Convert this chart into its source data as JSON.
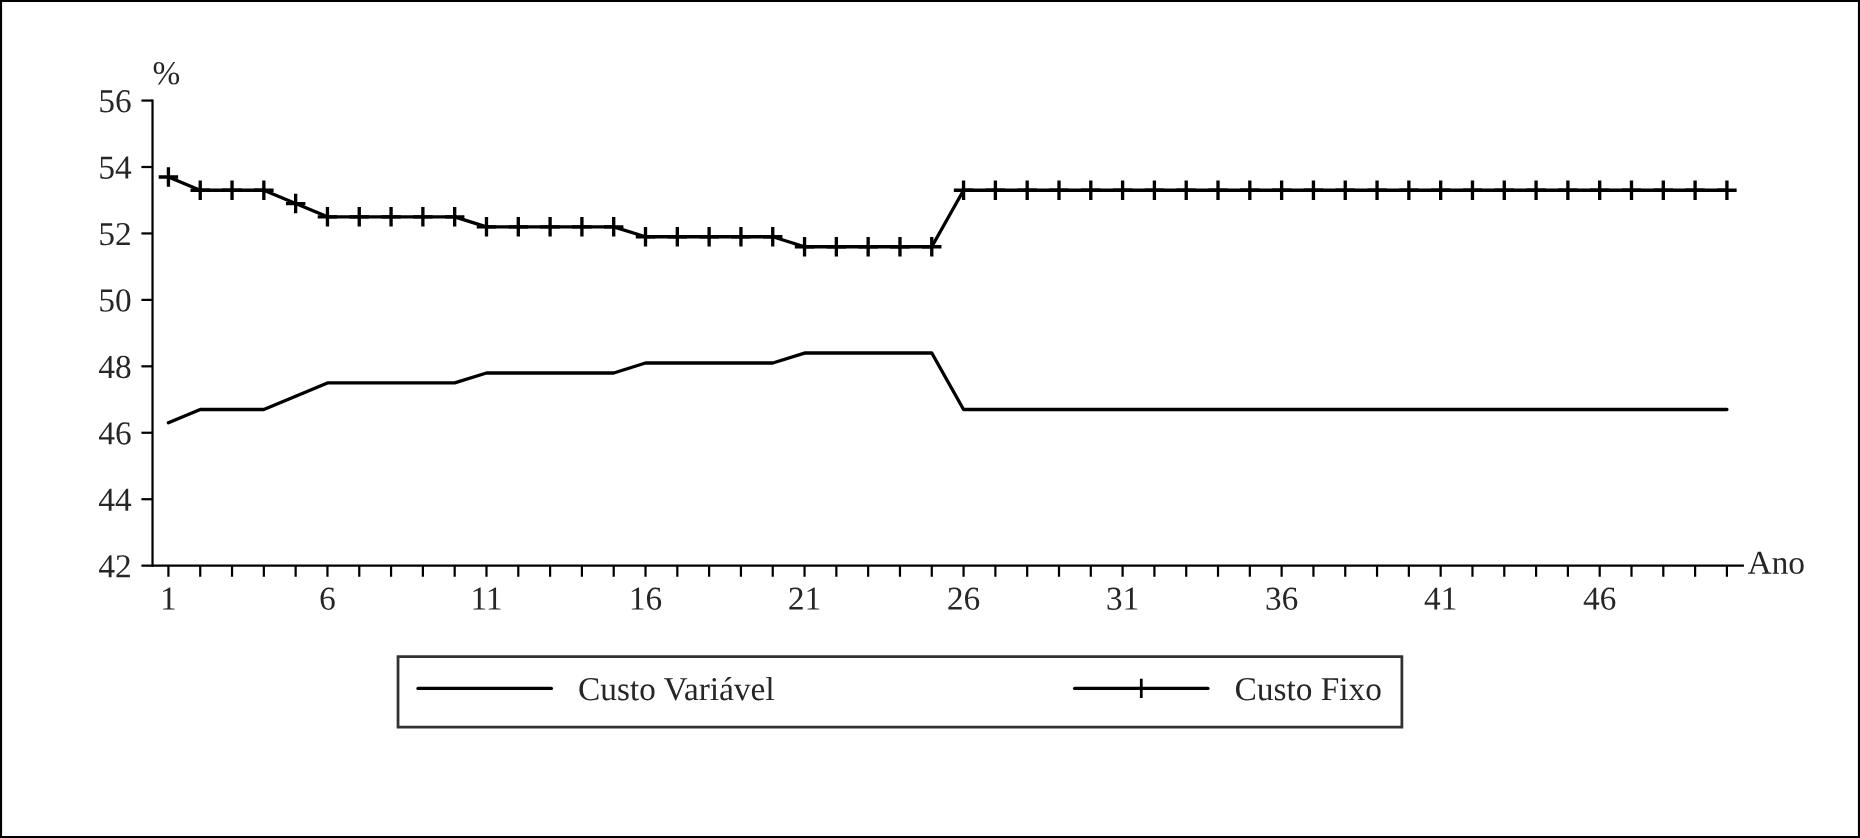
{
  "chart_data": {
    "type": "line",
    "ylabel": "%",
    "xlabel": "Ano",
    "categories": [
      "1",
      null,
      null,
      null,
      null,
      "6",
      null,
      null,
      null,
      null,
      "11",
      null,
      null,
      null,
      null,
      "16",
      null,
      null,
      null,
      null,
      "21",
      null,
      null,
      null,
      null,
      "26",
      null,
      null,
      null,
      null,
      "31",
      null,
      null,
      null,
      null,
      "36",
      null,
      null,
      null,
      null,
      "41",
      null,
      null,
      null,
      null,
      "46",
      null,
      null,
      null,
      null
    ],
    "series": [
      {
        "name": "Custo Variável",
        "color": "#000000",
        "marker": "none",
        "values": [
          46.3,
          46.7,
          46.7,
          46.7,
          47.1,
          47.5,
          47.5,
          47.5,
          47.5,
          47.5,
          47.8,
          47.8,
          47.8,
          47.8,
          47.8,
          48.1,
          48.1,
          48.1,
          48.1,
          48.1,
          48.4,
          48.4,
          48.4,
          48.4,
          48.4,
          46.7,
          46.7,
          46.7,
          46.7,
          46.7,
          46.7,
          46.7,
          46.7,
          46.7,
          46.7,
          46.7,
          46.7,
          46.7,
          46.7,
          46.7,
          46.7,
          46.7,
          46.7,
          46.7,
          46.7,
          46.7,
          46.7,
          46.7,
          46.7,
          46.7
        ]
      },
      {
        "name": "Custo Fixo",
        "color": "#000000",
        "marker": "cross",
        "values": [
          53.7,
          53.3,
          53.3,
          53.3,
          52.9,
          52.5,
          52.5,
          52.5,
          52.5,
          52.5,
          52.2,
          52.2,
          52.2,
          52.2,
          52.2,
          51.9,
          51.9,
          51.9,
          51.9,
          51.9,
          51.6,
          51.6,
          51.6,
          51.6,
          51.6,
          53.3,
          53.3,
          53.3,
          53.3,
          53.3,
          53.3,
          53.3,
          53.3,
          53.3,
          53.3,
          53.3,
          53.3,
          53.3,
          53.3,
          53.3,
          53.3,
          53.3,
          53.3,
          53.3,
          53.3,
          53.3,
          53.3,
          53.3,
          53.3,
          53.3
        ]
      }
    ],
    "ylim": [
      42,
      56
    ],
    "yticks": [
      42,
      44,
      46,
      48,
      50,
      52,
      54,
      56
    ],
    "grid": false,
    "legend": "bottom",
    "line_style": "solid"
  }
}
